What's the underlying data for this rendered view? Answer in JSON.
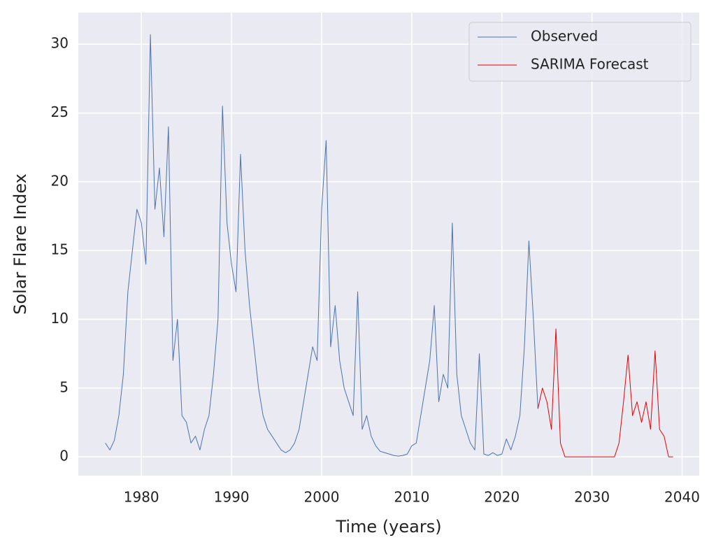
{
  "chart_data": {
    "type": "line",
    "xlabel": "Time (years)",
    "ylabel": "Solar Flare Index",
    "xlim": [
      1973.0,
      2041.9
    ],
    "xticks": [
      1980,
      1990,
      2000,
      2010,
      2020,
      2030,
      2040
    ],
    "ylim": [
      -1.37,
      32.3
    ],
    "yticks": [
      0,
      5,
      10,
      15,
      20,
      25,
      30
    ],
    "grid": true,
    "legend": "upper right",
    "series": [
      {
        "name": "Observed",
        "color": "#4c72b0",
        "x": [
          1976,
          1976.5,
          1977,
          1977.5,
          1978,
          1978.5,
          1979,
          1979.5,
          1980,
          1980.5,
          1981,
          1981.5,
          1982,
          1982.5,
          1983,
          1983.5,
          1984,
          1984.5,
          1985,
          1985.5,
          1986,
          1986.5,
          1987,
          1987.5,
          1988,
          1988.5,
          1989,
          1989.5,
          1990,
          1990.5,
          1991,
          1991.5,
          1992,
          1992.5,
          1993,
          1993.5,
          1994,
          1994.5,
          1995,
          1995.5,
          1996,
          1996.5,
          1997,
          1997.5,
          1998,
          1998.5,
          1999,
          1999.5,
          2000,
          2000.5,
          2001,
          2001.5,
          2002,
          2002.5,
          2003,
          2003.5,
          2004,
          2004.5,
          2005,
          2005.5,
          2006,
          2006.5,
          2007,
          2007.5,
          2008,
          2008.5,
          2009,
          2009.5,
          2010,
          2010.5,
          2011,
          2011.5,
          2012,
          2012.5,
          2013,
          2013.5,
          2014,
          2014.5,
          2015,
          2015.5,
          2016,
          2016.5,
          2017,
          2017.5,
          2018,
          2018.5,
          2019,
          2019.5,
          2020,
          2020.5,
          2021,
          2021.5,
          2022,
          2022.5,
          2023,
          2023.5,
          2024
        ],
        "values": [
          1.0,
          0.5,
          1.2,
          3,
          6,
          12,
          15,
          18,
          17,
          14,
          30.7,
          18,
          21,
          16,
          24,
          7,
          10,
          3,
          2.5,
          1,
          1.5,
          0.5,
          2,
          3,
          6,
          10,
          25.5,
          17,
          14,
          12,
          22,
          15,
          11,
          8,
          5,
          3,
          2,
          1.5,
          1,
          0.5,
          0.3,
          0.5,
          1,
          2,
          4,
          6,
          8,
          7,
          18,
          23,
          8,
          11,
          7,
          5,
          4,
          3,
          12,
          2,
          3,
          1.5,
          0.8,
          0.4,
          0.3,
          0.2,
          0.1,
          0.05,
          0.1,
          0.2,
          0.8,
          1,
          3,
          5,
          7,
          11,
          4,
          6,
          5,
          17,
          6,
          3,
          2,
          1,
          0.5,
          7.5,
          0.2,
          0.1,
          0.3,
          0.1,
          0.2,
          1.3,
          0.5,
          1.5,
          3,
          8,
          15.7,
          10,
          3.5
        ]
      },
      {
        "name": "SARIMA Forecast",
        "color": "#e80000",
        "x": [
          2024,
          2024.5,
          2025,
          2025.5,
          2026,
          2026.5,
          2027,
          2027.5,
          2028,
          2028.5,
          2029,
          2029.5,
          2030,
          2030.5,
          2031,
          2031.5,
          2032,
          2032.5,
          2033,
          2033.5,
          2034,
          2034.5,
          2035,
          2035.5,
          2036,
          2036.5,
          2037,
          2037.5,
          2038,
          2038.5,
          2039
        ],
        "values": [
          3.5,
          5,
          4,
          2,
          9.3,
          1,
          0,
          0,
          0,
          0,
          0,
          0,
          0,
          0,
          0,
          0,
          0,
          0,
          1,
          4,
          7.4,
          3,
          4,
          2.5,
          4,
          2,
          7.7,
          2,
          1.5,
          0,
          0
        ]
      }
    ]
  }
}
